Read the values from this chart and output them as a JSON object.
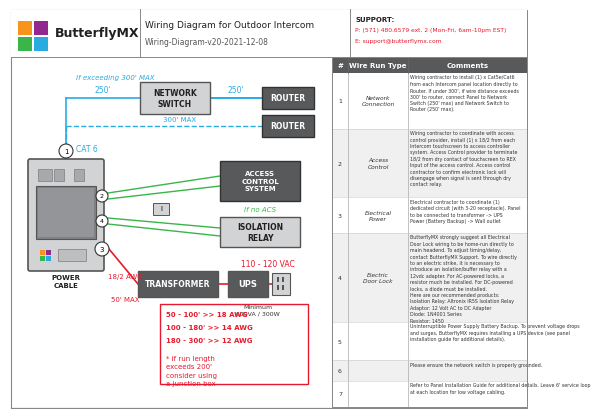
{
  "title": "Wiring Diagram for Outdoor Intercom",
  "subtitle": "Wiring-Diagram-v20-2021-12-08",
  "support_title": "SUPPORT:",
  "support_phone": "P: (571) 480.6579 ext. 2 (Mon-Fri, 6am-10pm EST)",
  "support_email": "E: support@butterflymx.com",
  "bg_color": "#ffffff",
  "cyan": "#29abe2",
  "green": "#39b54a",
  "red": "#e8192c",
  "dark_box": "#58595b",
  "mid_box": "#a7a9ac",
  "header_dark": "#58595b",
  "table_header_bg": "#58595b",
  "wire_types": [
    "Network\nConnection",
    "Access\nControl",
    "Electrical\nPower",
    "Electric\nDoor Lock",
    "",
    "",
    ""
  ],
  "row_comments": [
    "Wiring contractor to install (1) x Cat5e/Cat6\nfrom each Intercom panel location directly to\nRouter. If under 300', if wire distance exceeds\n300' to router, connect Panel to Network\nSwitch (250' max) and Network Switch to\nRouter (250' max).",
    "Wiring contractor to coordinate with access\ncontrol provider, install (1) x 18/2 from each\nIntercom touchscreen to access controller\nsystem. Access Control provider to terminate\n18/2 from dry contact of touchscreen to REX\nInput of the access control. Access control\ncontractor to confirm electronic lock will\ndisengage when signal is sent through dry\ncontact relay.",
    "Electrical contractor to coordinate (1)\ndedicated circuit (with 3-20 receptacle). Panel\nto be connected to transformer -> UPS\nPower (Battery Backup) -> Wall outlet",
    "ButterflyMX strongly suggest all Electrical\nDoor Lock wiring to be home-run directly to\nmain headend. To adjust timing/delay,\ncontact ButterflyMX Support. To wire directly\nto an electric strike, it is necessary to\nintroduce an isolation/buffer relay with a\n12vdc adapter. For AC-powered locks, a\nresistor much be installed. For DC-powered\nlocks, a diode must be installed.\nHere are our recommended products:\nIsolation Relay: Altronix IR5S Isolation Relay\nAdaptor: 12 Volt AC to DC Adapter\nDiode: 1N4001 Series\nResistor: 1450",
    "Uninterruptible Power Supply Battery Backup. To prevent voltage drops\nand surges, ButterflyMX requires installing a UPS device (see panel\ninstallation guide for additional details).",
    "Please ensure the network switch is properly grounded.",
    "Refer to Panel Installation Guide for additional details. Leave 6' service loop\nat each location for low voltage cabling."
  ],
  "awg_lines": [
    "50 - 100' >> 18 AWG",
    "100 - 180' >> 14 AWG",
    "180 - 300' >> 12 AWG"
  ],
  "awg_note": "* if run length\nexceeds 200'\nconsider using\na junction box"
}
